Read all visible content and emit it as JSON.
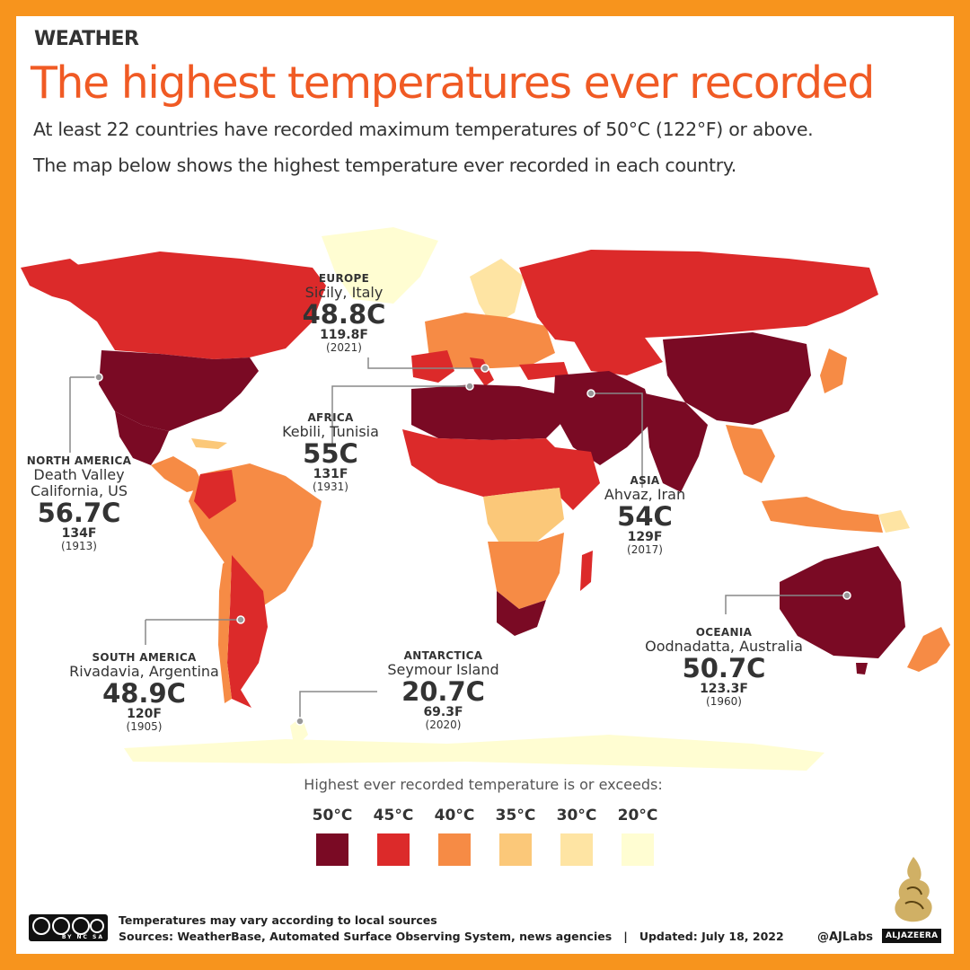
{
  "header": {
    "kicker": "WEATHER",
    "title": "The highest temperatures ever recorded",
    "subtitle_line1": "At least 22 countries have recorded maximum temperatures of 50°C (122°F) or above.",
    "subtitle_line2": "The map below shows the highest temperature ever recorded in each country."
  },
  "callouts": {
    "europe": {
      "region": "EUROPE",
      "place": "Sicily, Italy",
      "temp_c": "48.8C",
      "temp_f": "119.8F",
      "year": "(2021)"
    },
    "north_america": {
      "region": "NORTH AMERICA",
      "place_line1": "Death Valley",
      "place_line2": "California, US",
      "temp_c": "56.7C",
      "temp_f": "134F",
      "year": "(1913)"
    },
    "africa": {
      "region": "AFRICA",
      "place": "Kebili, Tunisia",
      "temp_c": "55C",
      "temp_f": "131F",
      "year": "(1931)"
    },
    "asia": {
      "region": "ASIA",
      "place": "Ahvaz, Iran",
      "temp_c": "54C",
      "temp_f": "129F",
      "year": "(2017)"
    },
    "south_america": {
      "region": "SOUTH AMERICA",
      "place": "Rivadavia, Argentina",
      "temp_c": "48.9C",
      "temp_f": "120F",
      "year": "(1905)"
    },
    "antarctica": {
      "region": "ANTARCTICA",
      "place": "Seymour Island",
      "temp_c": "20.7C",
      "temp_f": "69.3F",
      "year": "(2020)"
    },
    "oceania": {
      "region": "OCEANIA",
      "place": "Oodnadatta, Australia",
      "temp_c": "50.7C",
      "temp_f": "123.3F",
      "year": "(1960)"
    }
  },
  "legend": {
    "title": "Highest ever recorded temperature is or exceeds:",
    "items": [
      {
        "label": "50°C",
        "color": "#7A0A24"
      },
      {
        "label": "45°C",
        "color": "#DC2A2A"
      },
      {
        "label": "40°C",
        "color": "#F68B45"
      },
      {
        "label": "35°C",
        "color": "#FBC879"
      },
      {
        "label": "30°C",
        "color": "#FEE4A3"
      },
      {
        "label": "20°C",
        "color": "#FFFDD2"
      }
    ]
  },
  "footer": {
    "license": "BY NC SA",
    "note": "Temperatures may vary according to local sources",
    "sources": "Sources: WeatherBase, Automated Surface Observing System, news agencies   |   Updated: July 18, 2022",
    "handle": "@AJLabs",
    "brand": "ALJAZEERA"
  },
  "colors": {
    "accent": "#F05A24",
    "frame": "#F7941D"
  },
  "icons": [
    "creative-commons-icon",
    "aljazeera-logo-icon"
  ]
}
